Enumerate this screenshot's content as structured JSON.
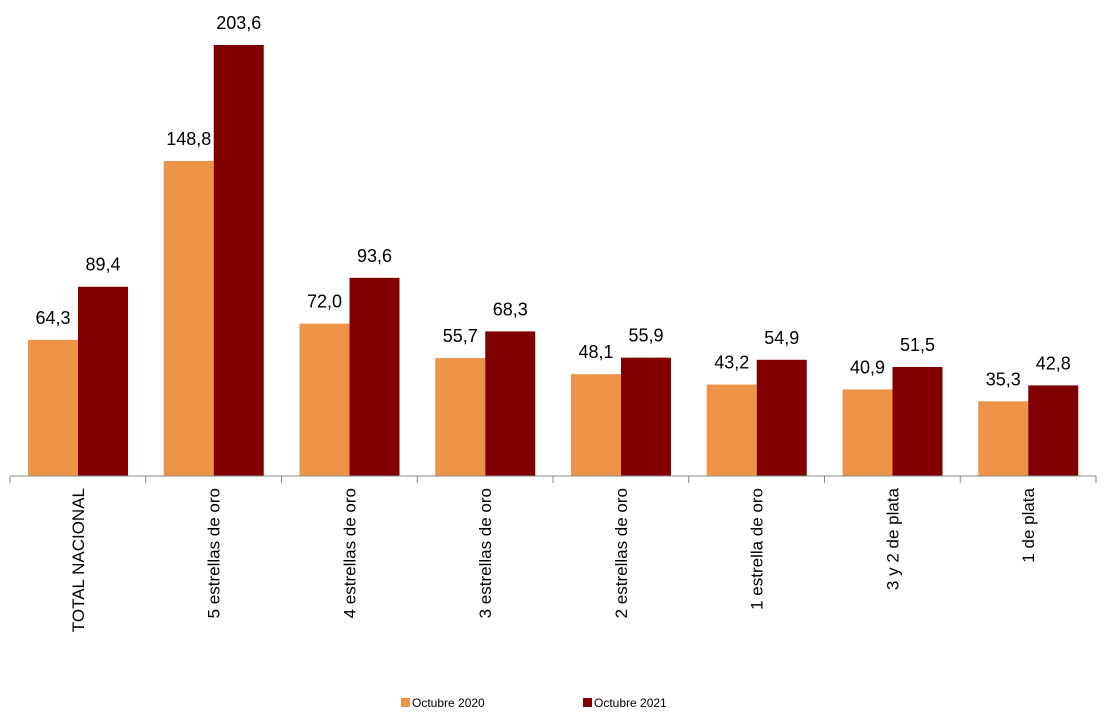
{
  "chart_data": {
    "type": "bar",
    "categories": [
      "TOTAL NACIONAL",
      "5 estrellas de oro",
      "4 estrellas de oro",
      "3 estrellas de oro",
      "2 estrellas de oro",
      "1 estrella de oro",
      "3 y 2 de plata",
      "1 de plata"
    ],
    "series": [
      {
        "name": "Octubre 2020",
        "color": "#ED9449",
        "values": [
          64.3,
          148.8,
          72.0,
          55.7,
          48.1,
          43.2,
          40.9,
          35.3
        ],
        "labels": [
          "64,3",
          "148,8",
          "72,0",
          "55,7",
          "48,1",
          "43,2",
          "40,9",
          "35,3"
        ]
      },
      {
        "name": "Octubre 2021",
        "color": "#800000",
        "values": [
          89.4,
          203.6,
          93.6,
          68.3,
          55.9,
          54.9,
          51.5,
          42.8
        ],
        "labels": [
          "89,4",
          "203,6",
          "93,6",
          "68,3",
          "55,9",
          "54,9",
          "51,5",
          "42,8"
        ]
      }
    ],
    "ylim": [
      0,
      210
    ],
    "grid": false,
    "legend_position": "bottom-center"
  }
}
